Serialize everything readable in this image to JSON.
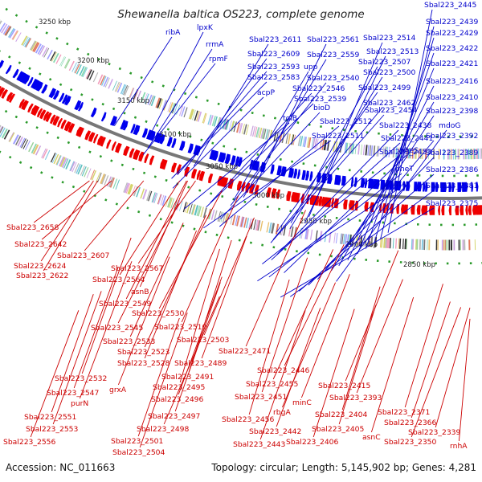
{
  "title": "Shewanella baltica OS223, complete genome",
  "footer": {
    "accession": "Accession: NC_011663",
    "topology": "Topology: circular; Length: 5,145,902 bp; Genes: 4,281"
  },
  "colors": {
    "forward_strand": "#0000ee",
    "reverse_strand": "#ee0000",
    "backbone": "#777777",
    "tick_marks": "#2a9a2a",
    "label_top": "#0000cc",
    "label_bottom": "#cc0000"
  },
  "kbp_labels": [
    "3250 kbp",
    "3200 kbp",
    "3150 kbp",
    "3100 kbp",
    "3050 kbp",
    "3000 kbp",
    "2950 kbp",
    "2900 kbp",
    "2850 kbp"
  ],
  "top_labels": [
    "Sbal223_2445",
    "Sbal223_2439",
    "Sbal223_2429",
    "Sbal223_2422",
    "Sbal223_2421",
    "Sbal223_2416",
    "Sbal223_2410",
    "Sbal223_2398",
    "mdoG",
    "Sbal223_2392",
    "Sbal223_2389",
    "Sbal223_2386",
    "Sbal223_2381",
    "Sbal223_2375",
    "Sbal223_2514",
    "Sbal223_2513",
    "Sbal223_2507",
    "Sbal223_2500",
    "Sbal223_2499",
    "Sbal223_2462",
    "Sbal223_2454",
    "Sbal223_2438",
    "Sbal223_2441",
    "pheS",
    "pheT",
    "ihfA",
    "Sbal223_2611",
    "Sbal223_2561",
    "Sbal223_2609",
    "Sbal223_2559",
    "Sbal223_2593",
    "upp",
    "Sbal223_2583",
    "Sbal223_2540",
    "Sbal223_2546",
    "Sbal223_2539",
    "bioD",
    "Sbal223_2512",
    "Sbal223_2511",
    "Sbal223_2453",
    "ribA",
    "lpxK",
    "rrmA",
    "rpmF",
    "acpP",
    "tolB"
  ],
  "bottom_labels": [
    "Sbal223_2658",
    "Sbal223_2642",
    "Sbal223_2607",
    "Sbal223_2624",
    "Sbal223_2567",
    "Sbal223_2622",
    "Sbal223_2564",
    "asnB",
    "Sbal223_2549",
    "Sbal223_2530",
    "Sbal223_2545",
    "Sbal223_2510",
    "Sbal223_2533",
    "Sbal223_2503",
    "Sbal223_2523",
    "Sbal223_2528",
    "Sbal223_2471",
    "Sbal223_2489",
    "Sbal223_2491",
    "Sbal223_2532",
    "Sbal223_2495",
    "grxA",
    "Sbal223_2547",
    "Sbal223_2496",
    "purN",
    "Sbal223_2497",
    "Sbal223_2551",
    "Sbal223_2498",
    "Sbal223_2553",
    "Sbal223_2501",
    "Sbal223_2556",
    "Sbal223_2504",
    "Sbal223_2446",
    "Sbal223_2455",
    "Sbal223_2451",
    "Sbal223_2456",
    "rbgA",
    "Sbal223_2442",
    "Sbal223_2443",
    "Sbal223_2415",
    "minC",
    "Sbal223_2404",
    "Sbal223_2405",
    "Sbal223_2406",
    "Sbal223_2393",
    "Sbal223_2371",
    "asnC",
    "Sbal223_2366",
    "Sbal223_2339",
    "Sbal223_2350",
    "rnhA"
  ]
}
